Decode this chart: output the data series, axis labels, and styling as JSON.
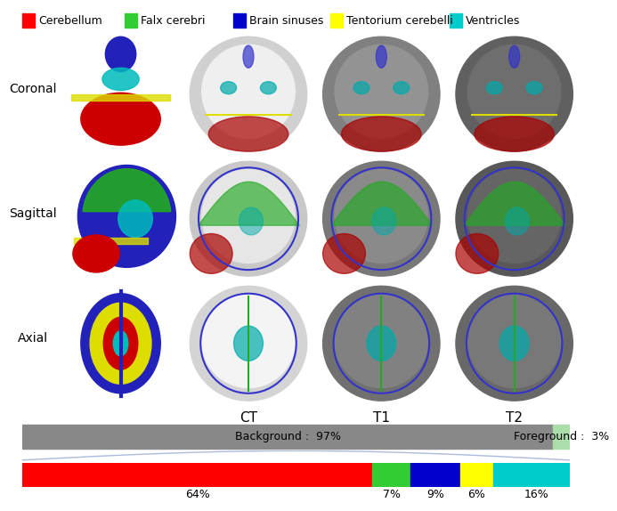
{
  "legend_items": [
    {
      "label": "Cerebellum",
      "color": "#ff0000"
    },
    {
      "label": "Falx cerebri",
      "color": "#33cc33"
    },
    {
      "label": "Brain sinuses",
      "color": "#0000cc"
    },
    {
      "label": "Tentorium cerebelli",
      "color": "#ffff00"
    },
    {
      "label": "Ventricles",
      "color": "#00cccc"
    }
  ],
  "row_labels": [
    "Coronal",
    "Sagittal",
    "Axial"
  ],
  "col_labels": [
    "CT",
    "T1",
    "T2"
  ],
  "bar1_data": [
    {
      "label": "Background :  97%",
      "value": 97,
      "color": "#888888"
    },
    {
      "label": "Foreground :  3%",
      "value": 3,
      "color": "#aaddaa"
    }
  ],
  "bar2_data": [
    {
      "label": "64%",
      "value": 64,
      "color": "#ff0000"
    },
    {
      "label": "7%",
      "value": 7,
      "color": "#33cc33"
    },
    {
      "label": "9%",
      "value": 9,
      "color": "#0000cc"
    },
    {
      "label": "6%",
      "value": 6,
      "color": "#ffff00"
    },
    {
      "label": "16%",
      "value": 16,
      "color": "#00cccc"
    }
  ],
  "bg_color": "#ffffff",
  "scan_bg_coronal_ct": "#d0d0d0",
  "scan_bg_coronal_t1": "#808080",
  "scan_bg_coronal_t2": "#606060",
  "scan_bg_sagittal_ct": "#c8c8c8",
  "scan_bg_sagittal_t1": "#787878",
  "scan_bg_sagittal_t2": "#585858",
  "scan_bg_axial_ct": "#d4d4d4",
  "scan_bg_axial_t1": "#707070",
  "scan_bg_axial_t2": "#686868"
}
